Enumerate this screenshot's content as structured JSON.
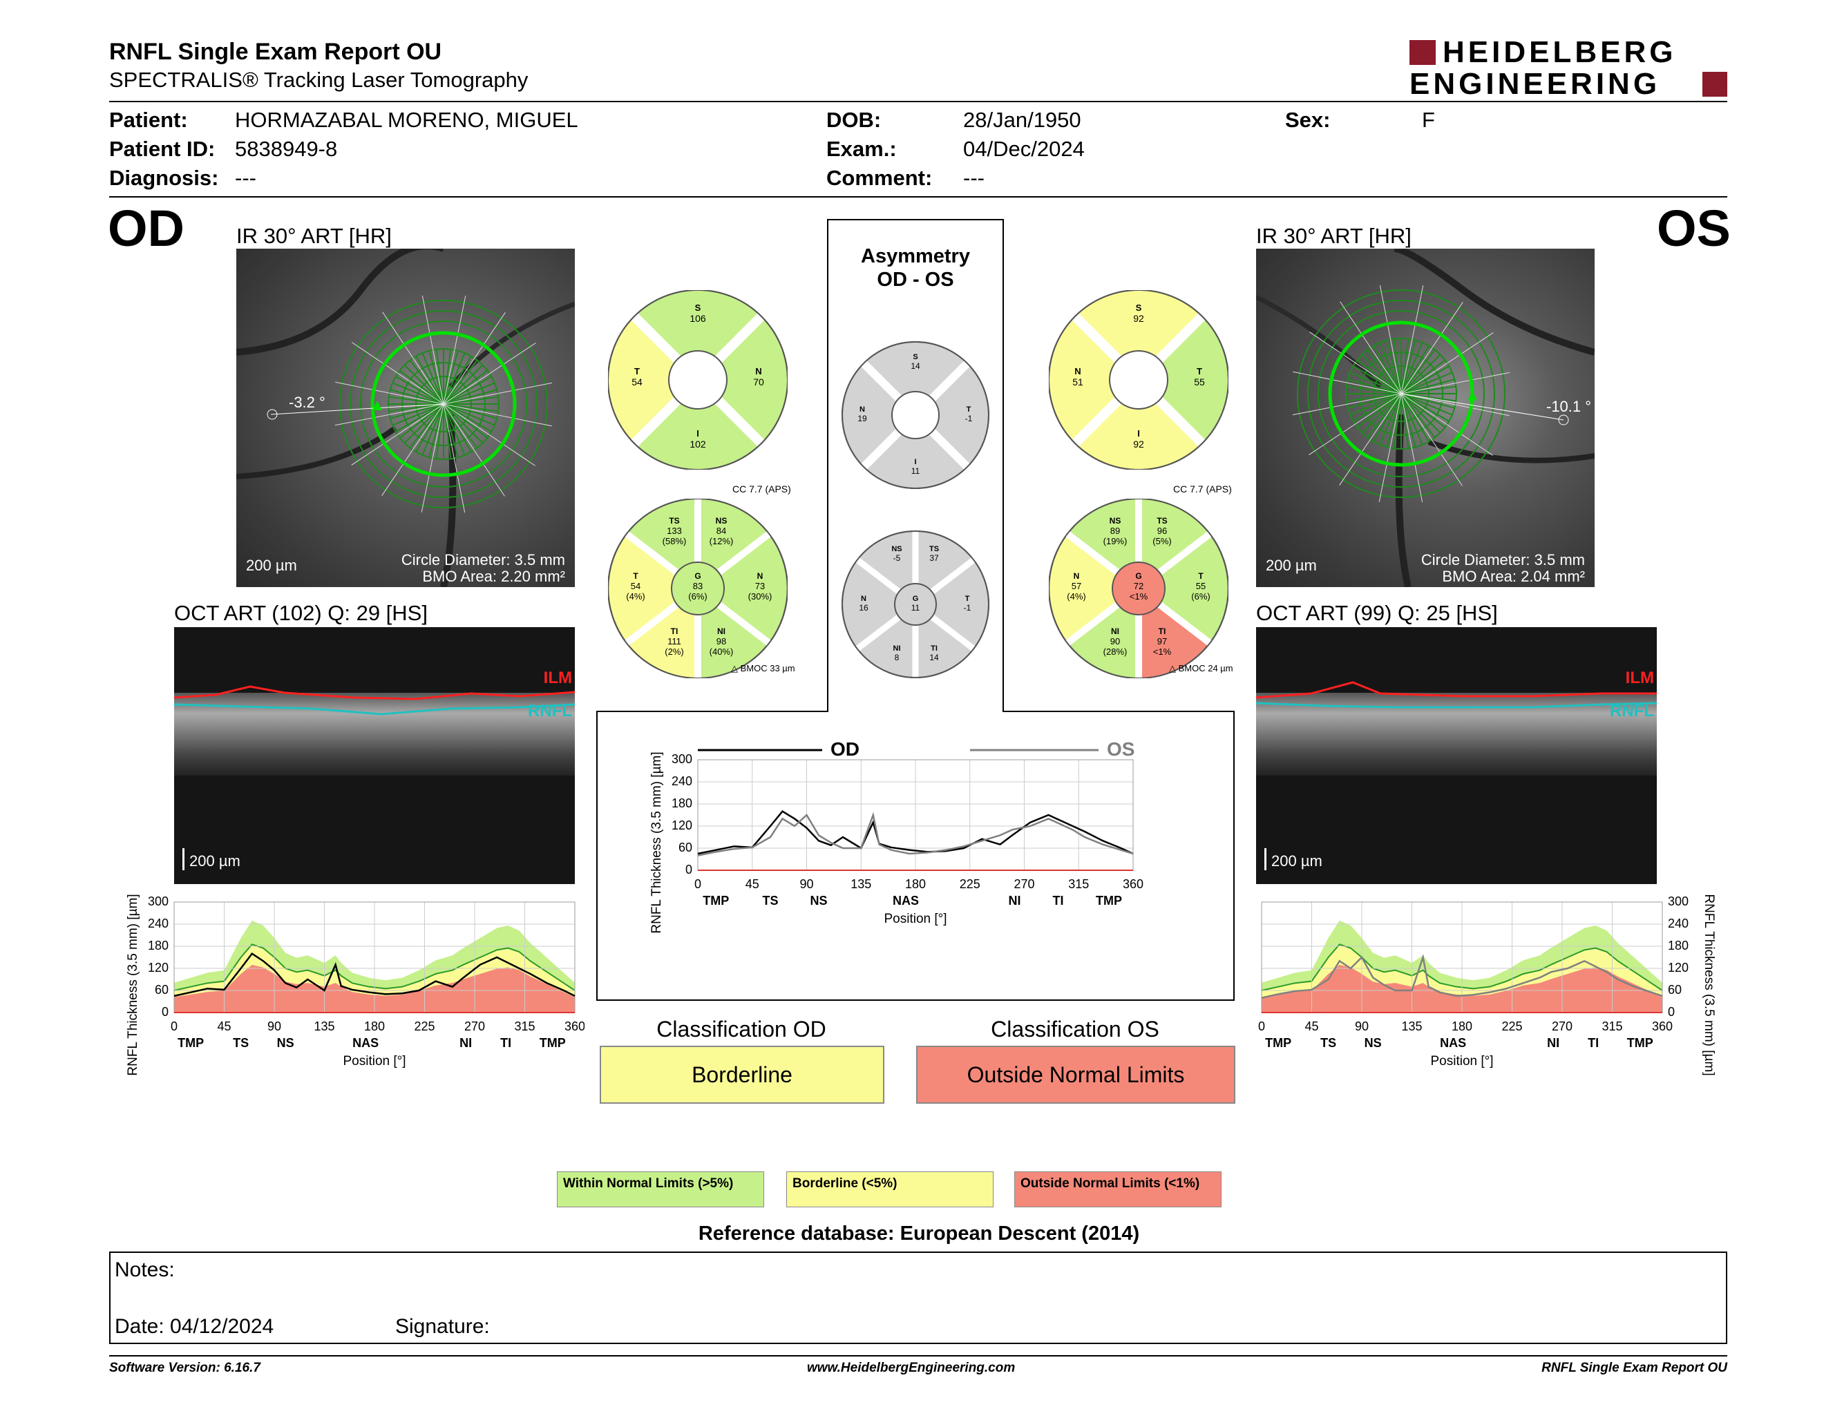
{
  "header": {
    "title": "RNFL Single Exam Report OU",
    "subtitle": "SPECTRALIS® Tracking Laser Tomography",
    "brand_line1": "HEIDELBERG",
    "brand_line2": "ENGINEERING",
    "brand_color": "#8b1a2b"
  },
  "patient": {
    "patient_label": "Patient:",
    "patient_value": "HORMAZABAL MORENO, MIGUEL",
    "id_label": "Patient ID:",
    "id_value": "5838949-8",
    "diag_label": "Diagnosis:",
    "diag_value": "---",
    "dob_label": "DOB:",
    "dob_value": "28/Jan/1950",
    "exam_label": "Exam.:",
    "exam_value": "04/Dec/2024",
    "comment_label": "Comment:",
    "comment_value": "---",
    "sex_label": "Sex:",
    "sex_value": "F"
  },
  "od": {
    "eye": "OD",
    "ir_caption": "IR 30° ART [HR]",
    "angle": "-3.2 °",
    "scale": "200 µm",
    "circle_diameter": "Circle Diameter: 3.5 mm",
    "bmo_area": "BMO Area: 2.20 mm²",
    "oct_caption": "OCT ART (102) Q: 29 [HS]",
    "oct_scale": "200 µm",
    "ilm": "ILM",
    "rnfl": "RNFL",
    "sectors4": {
      "S": "106",
      "T": "54",
      "N": "70",
      "I": "102"
    },
    "sectors6": {
      "TS": "133",
      "TS_p": "(58%)",
      "NS": "84",
      "NS_p": "(12%)",
      "T": "54",
      "T_p": "(4%)",
      "G": "83",
      "G_p": "(6%)",
      "N": "73",
      "N_p": "(30%)",
      "TI": "111",
      "TI_p": "(2%)",
      "NI": "98",
      "NI_p": "(40%)"
    },
    "cc": "CC 7.7 (APS)",
    "bmoc": "BMOC 33 µm",
    "classification_label": "Classification OD",
    "classification": "Borderline"
  },
  "os": {
    "eye": "OS",
    "ir_caption": "IR 30° ART [HR]",
    "angle": "-10.1 °",
    "scale": "200 µm",
    "circle_diameter": "Circle Diameter: 3.5 mm",
    "bmo_area": "BMO Area: 2.04 mm²",
    "oct_caption": "OCT ART (99) Q: 25 [HS]",
    "oct_scale": "200 µm",
    "ilm": "ILM",
    "rnfl": "RNFL",
    "sectors4": {
      "S": "92",
      "N": "51",
      "T": "55",
      "I": "92"
    },
    "sectors6": {
      "NS": "89",
      "NS_p": "(19%)",
      "TS": "96",
      "TS_p": "(5%)",
      "N": "57",
      "N_p": "(4%)",
      "G": "72",
      "G_p": "<1%",
      "T": "55",
      "T_p": "(6%)",
      "NI": "90",
      "NI_p": "(28%)",
      "TI": "97",
      "TI_p": "<1%"
    },
    "cc": "CC 7.7 (APS)",
    "bmoc": "BMOC 24 µm",
    "classification_label": "Classification OS",
    "classification": "Outside Normal Limits"
  },
  "asymmetry": {
    "title1": "Asymmetry",
    "title2": "OD - OS",
    "sectors4": {
      "S": "14",
      "N": "19",
      "T": "-1",
      "I": "11"
    },
    "sectors6": {
      "NS": "-5",
      "TS": "37",
      "N": "16",
      "G": "11",
      "T": "-1",
      "NI": "8",
      "TI": "14"
    },
    "legend_od": "OD",
    "legend_os": "OS"
  },
  "colors": {
    "green": "#c6f08a",
    "yellow": "#fbfb96",
    "red": "#f4897a",
    "gray": "#d3d3d3",
    "od_line": "#000000",
    "os_line": "#808080"
  },
  "axis": {
    "ylabel": "RNFL Thickness (3.5 mm) [µm]",
    "xlabel": "Position [°]",
    "yticks": [
      "0",
      "60",
      "120",
      "180",
      "240",
      "300"
    ],
    "xticks": [
      "0",
      "45",
      "90",
      "135",
      "180",
      "225",
      "270",
      "315",
      "360"
    ],
    "regions": [
      "TMP",
      "TS",
      "NS",
      "NAS",
      "NI",
      "TI",
      "TMP"
    ]
  },
  "chart_data": [
    {
      "type": "line",
      "title": "",
      "xlabel": "Position [°]",
      "ylabel": "RNFL Thickness (3.5 mm) [µm]",
      "xlim": [
        0,
        360
      ],
      "ylim": [
        0,
        300
      ],
      "x": [
        0,
        15,
        30,
        45,
        60,
        70,
        80,
        90,
        100,
        110,
        120,
        135,
        145,
        150,
        160,
        175,
        190,
        205,
        220,
        235,
        250,
        260,
        275,
        290,
        300,
        310,
        320,
        335,
        350,
        360
      ],
      "series": [
        {
          "name": "OD",
          "values": [
            45,
            55,
            65,
            62,
            120,
            160,
            140,
            115,
            80,
            68,
            90,
            60,
            130,
            72,
            62,
            55,
            50,
            52,
            60,
            85,
            70,
            95,
            130,
            150,
            135,
            120,
            105,
            80,
            60,
            45
          ]
        },
        {
          "name": "OS",
          "values": [
            40,
            50,
            58,
            62,
            90,
            140,
            120,
            150,
            95,
            75,
            60,
            60,
            150,
            70,
            55,
            45,
            48,
            55,
            65,
            80,
            95,
            110,
            120,
            140,
            125,
            110,
            90,
            70,
            55,
            45
          ]
        }
      ]
    }
  ],
  "legend": {
    "wnl": "Within Normal Limits (>5%)",
    "bl": "Borderline (<5%)",
    "onl": "Outside Normal Limits (<1%)"
  },
  "reference": "Reference database: European Descent (2014)",
  "notes": {
    "notes_label": "Notes:",
    "date_label": "Date: 04/12/2024",
    "signature_label": "Signature:"
  },
  "footer": {
    "version": "Software Version: 6.16.7",
    "url": "www.HeidelbergEngineering.com",
    "report": "RNFL Single Exam Report OU"
  }
}
